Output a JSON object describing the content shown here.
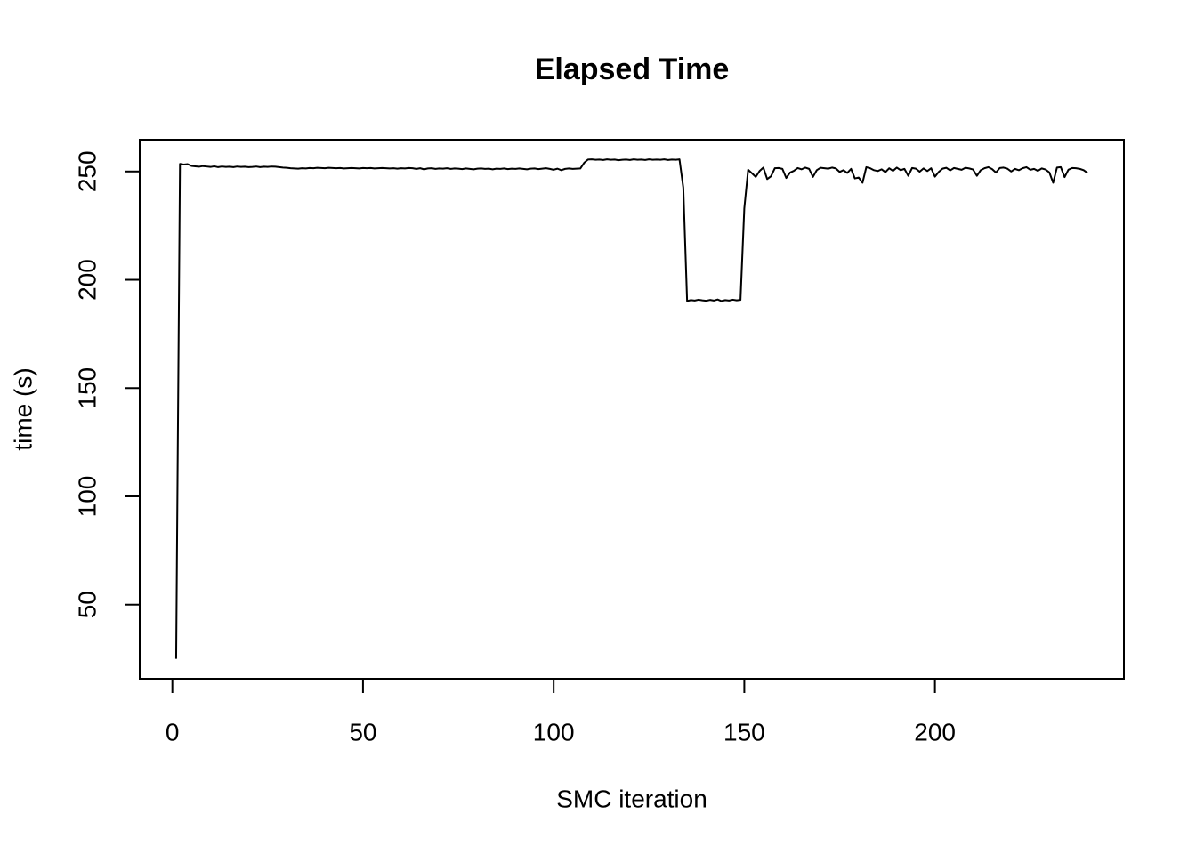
{
  "chart_data": {
    "type": "line",
    "title": "Elapsed Time",
    "x_label": "SMC iteration",
    "y_label": "time (s)",
    "x": [
      1,
      2,
      3,
      4,
      5,
      6,
      7,
      8,
      9,
      10,
      11,
      12,
      13,
      14,
      15,
      16,
      17,
      18,
      19,
      20,
      21,
      22,
      23,
      24,
      25,
      26,
      27,
      28,
      29,
      30,
      31,
      32,
      33,
      34,
      35,
      36,
      37,
      38,
      39,
      40,
      41,
      42,
      43,
      44,
      45,
      46,
      47,
      48,
      49,
      50,
      51,
      52,
      53,
      54,
      55,
      56,
      57,
      58,
      59,
      60,
      61,
      62,
      63,
      64,
      65,
      66,
      67,
      68,
      69,
      70,
      71,
      72,
      73,
      74,
      75,
      76,
      77,
      78,
      79,
      80,
      81,
      82,
      83,
      84,
      85,
      86,
      87,
      88,
      89,
      90,
      91,
      92,
      93,
      94,
      95,
      96,
      97,
      98,
      99,
      100,
      101,
      102,
      103,
      104,
      105,
      106,
      107,
      108,
      109,
      110,
      111,
      112,
      113,
      114,
      115,
      116,
      117,
      118,
      119,
      120,
      121,
      122,
      123,
      124,
      125,
      126,
      127,
      128,
      129,
      130,
      131,
      132,
      133,
      134,
      135,
      136,
      137,
      138,
      139,
      140,
      141,
      142,
      143,
      144,
      145,
      146,
      147,
      148,
      149,
      150,
      151,
      152,
      153,
      154,
      155,
      156,
      157,
      158,
      159,
      160,
      161,
      162,
      163,
      164,
      165,
      166,
      167,
      168,
      169,
      170,
      171,
      172,
      173,
      174,
      175,
      176,
      177,
      178,
      179,
      180,
      181,
      182,
      183,
      184,
      185,
      186,
      187,
      188,
      189,
      190,
      191,
      192,
      193,
      194,
      195,
      196,
      197,
      198,
      199,
      200,
      201,
      202,
      203,
      204,
      205,
      206,
      207,
      208,
      209,
      210,
      211,
      212,
      213,
      214,
      215,
      216,
      217,
      218,
      219,
      220,
      221,
      222,
      223,
      224,
      225,
      226,
      227,
      228,
      229,
      230,
      231,
      232,
      233,
      234,
      235,
      236,
      237,
      238,
      239,
      240
    ],
    "values": [
      25,
      253.5,
      253.2,
      253.4,
      252.6,
      252.4,
      252.2,
      252.5,
      252.3,
      252.1,
      252.4,
      252.0,
      252.3,
      252.1,
      252.2,
      252.0,
      252.3,
      252.1,
      252.2,
      252.0,
      252.1,
      252.3,
      252.0,
      252.2,
      252.1,
      252.3,
      252.2,
      252.0,
      251.8,
      251.7,
      251.5,
      251.4,
      251.3,
      251.5,
      251.4,
      251.6,
      251.5,
      251.7,
      251.6,
      251.5,
      251.7,
      251.6,
      251.5,
      251.6,
      251.4,
      251.5,
      251.6,
      251.5,
      251.4,
      251.6,
      251.5,
      251.6,
      251.4,
      251.5,
      251.6,
      251.5,
      251.4,
      251.5,
      251.3,
      251.5,
      251.4,
      251.6,
      251.5,
      251.2,
      251.5,
      251.0,
      251.4,
      251.5,
      251.2,
      251.4,
      251.3,
      251.5,
      251.2,
      251.4,
      251.3,
      251.1,
      251.4,
      251.2,
      251.0,
      251.3,
      251.4,
      251.2,
      251.3,
      251.0,
      251.3,
      251.2,
      251.4,
      251.1,
      251.3,
      251.2,
      251.4,
      251.2,
      251.0,
      251.3,
      251.4,
      251.1,
      251.3,
      251.5,
      251.2,
      250.8,
      251.3,
      250.6,
      251.2,
      251.4,
      251.2,
      251.3,
      251.4,
      254.0,
      255.5,
      255.6,
      255.4,
      255.5,
      255.3,
      255.6,
      255.4,
      255.5,
      255.2,
      255.4,
      255.5,
      255.3,
      255.6,
      255.4,
      255.5,
      255.3,
      255.6,
      255.4,
      255.5,
      255.4,
      255.6,
      255.3,
      255.5,
      255.4,
      255.6,
      242.5,
      190.2,
      190.6,
      190.4,
      190.8,
      190.5,
      190.3,
      190.7,
      190.4,
      190.9,
      190.2,
      190.6,
      190.4,
      190.8,
      190.5,
      190.7,
      233.0,
      250.8,
      249.2,
      247.5,
      250.2,
      251.8,
      246.5,
      247.8,
      251.5,
      251.6,
      251.2,
      247.0,
      249.5,
      250.3,
      251.6,
      251.0,
      251.8,
      251.2,
      247.5,
      250.6,
      251.7,
      251.5,
      251.3,
      251.8,
      251.4,
      249.8,
      250.6,
      249.3,
      251.2,
      246.8,
      247.2,
      244.8,
      252.0,
      251.5,
      250.6,
      250.2,
      251.0,
      249.7,
      251.5,
      250.3,
      251.8,
      250.6,
      251.2,
      248.0,
      251.6,
      251.3,
      249.9,
      251.4,
      250.2,
      251.5,
      247.6,
      249.8,
      251.3,
      251.7,
      250.5,
      251.6,
      251.2,
      250.8,
      251.7,
      251.4,
      250.9,
      248.0,
      250.6,
      251.5,
      252.0,
      251.1,
      249.5,
      251.6,
      251.8,
      251.3,
      250.0,
      251.2,
      250.6,
      251.5,
      252.0,
      250.8,
      251.2,
      250.3,
      251.4,
      250.9,
      249.6,
      244.8,
      251.8,
      252.0,
      247.4,
      250.8,
      251.6,
      251.5,
      251.2,
      250.6,
      249.3
    ],
    "color": "#000000",
    "xlim": [
      -8.56,
      249.56
    ],
    "xticks": [
      0,
      50,
      100,
      150,
      200
    ],
    "ylim": [
      15.8,
      264.7
    ],
    "yticks": [
      50,
      100,
      150,
      200,
      250
    ]
  }
}
